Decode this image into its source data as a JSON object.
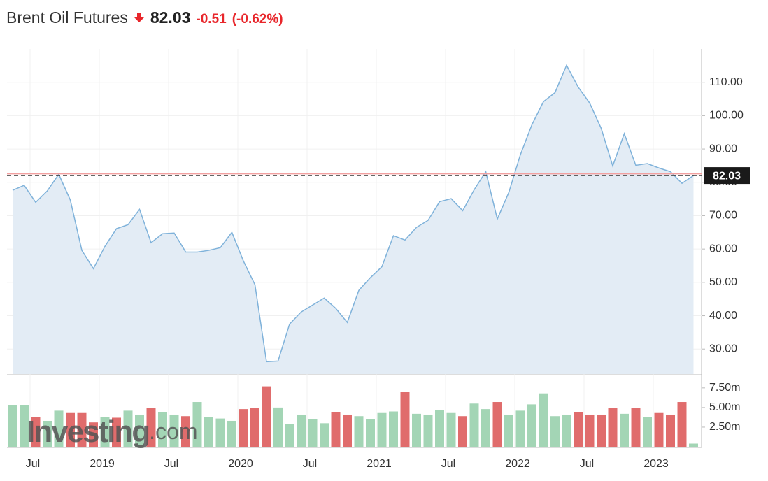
{
  "chart_data": [
    {
      "type": "area",
      "title": "Brent Oil Futures",
      "price": 82.03,
      "change": -0.51,
      "change_percent": "(-0.62%)",
      "categories": [
        null,
        null,
        "Jul",
        null,
        null,
        null,
        null,
        null,
        "2019",
        null,
        null,
        null,
        null,
        null,
        "Jul",
        null,
        null,
        null,
        null,
        null,
        "2020",
        null,
        null,
        null,
        null,
        null,
        "Jul",
        null,
        null,
        null,
        null,
        null,
        "2021",
        null,
        null,
        null,
        null,
        null,
        "Jul",
        null,
        null,
        null,
        null,
        null,
        "2022",
        null,
        null,
        null,
        null,
        null,
        "Jul",
        null,
        null,
        null,
        null,
        null,
        "2023",
        null,
        null,
        null
      ],
      "values": [
        77.6,
        79.1,
        74.0,
        77.4,
        82.4,
        74.7,
        59.6,
        54.1,
        60.8,
        66.1,
        67.3,
        71.9,
        61.9,
        64.6,
        64.8,
        59.1,
        59.1,
        59.6,
        60.4,
        65.0,
        56.4,
        49.3,
        26.2,
        26.4,
        37.5,
        41.1,
        43.2,
        45.3,
        42.2,
        38.0,
        47.6,
        51.4,
        54.7,
        64.0,
        62.7,
        66.5,
        68.6,
        74.2,
        75.1,
        71.5,
        77.8,
        83.2,
        69.0,
        77.0,
        88.3,
        97.3,
        104.2,
        106.9,
        115.1,
        108.6,
        103.8,
        96.2,
        84.9,
        94.6,
        85.1,
        85.6,
        84.3,
        83.2,
        79.7,
        82.03
      ],
      "color": "#7fb2da",
      "fill": "#e3ecf5",
      "previous_close": 82.54,
      "previous_close_color": "#f2a0a0",
      "ylim": [
        22.5,
        120
      ],
      "yticks": [
        {
          "value": 30,
          "label": "30.00"
        },
        {
          "value": 40,
          "label": "40.00"
        },
        {
          "value": 50,
          "label": "50.00"
        },
        {
          "value": 60,
          "label": "60.00"
        },
        {
          "value": 70,
          "label": "70.00"
        },
        {
          "value": 80,
          "label": "80.00"
        },
        {
          "value": 90,
          "label": "90.00"
        },
        {
          "value": 100,
          "label": "100.00"
        },
        {
          "value": 110,
          "label": "110.00"
        }
      ],
      "grid": true
    },
    {
      "type": "bar",
      "watermark": "Investing",
      "watermark_suffix": ".com",
      "values": [
        5.3,
        5.3,
        3.8,
        3.3,
        4.6,
        4.3,
        4.3,
        3.1,
        3.8,
        3.7,
        4.6,
        4.1,
        4.9,
        4.4,
        4.1,
        3.9,
        5.7,
        3.8,
        3.6,
        3.3,
        4.8,
        4.9,
        7.7,
        5.0,
        2.9,
        4.1,
        3.5,
        3.0,
        4.4,
        4.1,
        3.9,
        3.5,
        4.3,
        4.5,
        7.0,
        4.2,
        4.1,
        4.7,
        4.3,
        3.9,
        5.5,
        4.8,
        5.7,
        4.1,
        4.6,
        5.4,
        6.8,
        3.9,
        4.1,
        4.4,
        4.1,
        4.1,
        4.9,
        4.2,
        4.9,
        3.8,
        4.3,
        4.1,
        5.7,
        0.4
      ],
      "colors": [
        "#a3d5b5",
        "#a3d5b5",
        "#e06c6c",
        "#a3d5b5",
        "#a3d5b5",
        "#e06c6c",
        "#e06c6c",
        "#e06c6c",
        "#a3d5b5",
        "#e06c6c",
        "#a3d5b5",
        "#a3d5b5",
        "#e06c6c",
        "#a3d5b5",
        "#a3d5b5",
        "#e06c6c",
        "#a3d5b5",
        "#a3d5b5",
        "#a3d5b5",
        "#a3d5b5",
        "#e06c6c",
        "#e06c6c",
        "#e06c6c",
        "#a3d5b5",
        "#a3d5b5",
        "#a3d5b5",
        "#a3d5b5",
        "#a3d5b5",
        "#e06c6c",
        "#e06c6c",
        "#a3d5b5",
        "#a3d5b5",
        "#a3d5b5",
        "#a3d5b5",
        "#e06c6c",
        "#a3d5b5",
        "#a3d5b5",
        "#a3d5b5",
        "#a3d5b5",
        "#e06c6c",
        "#a3d5b5",
        "#a3d5b5",
        "#e06c6c",
        "#a3d5b5",
        "#a3d5b5",
        "#a3d5b5",
        "#a3d5b5",
        "#a3d5b5",
        "#a3d5b5",
        "#e06c6c",
        "#e06c6c",
        "#e06c6c",
        "#e06c6c",
        "#a3d5b5",
        "#e06c6c",
        "#a3d5b5",
        "#e06c6c",
        "#e06c6c",
        "#e06c6c",
        "#a3d5b5"
      ],
      "ylim": [
        0,
        9
      ],
      "yticks": [
        {
          "value": 2.5,
          "label": "2.50m"
        },
        {
          "value": 5,
          "label": "5.00m"
        },
        {
          "value": 7.5,
          "label": "7.50m"
        }
      ]
    }
  ]
}
